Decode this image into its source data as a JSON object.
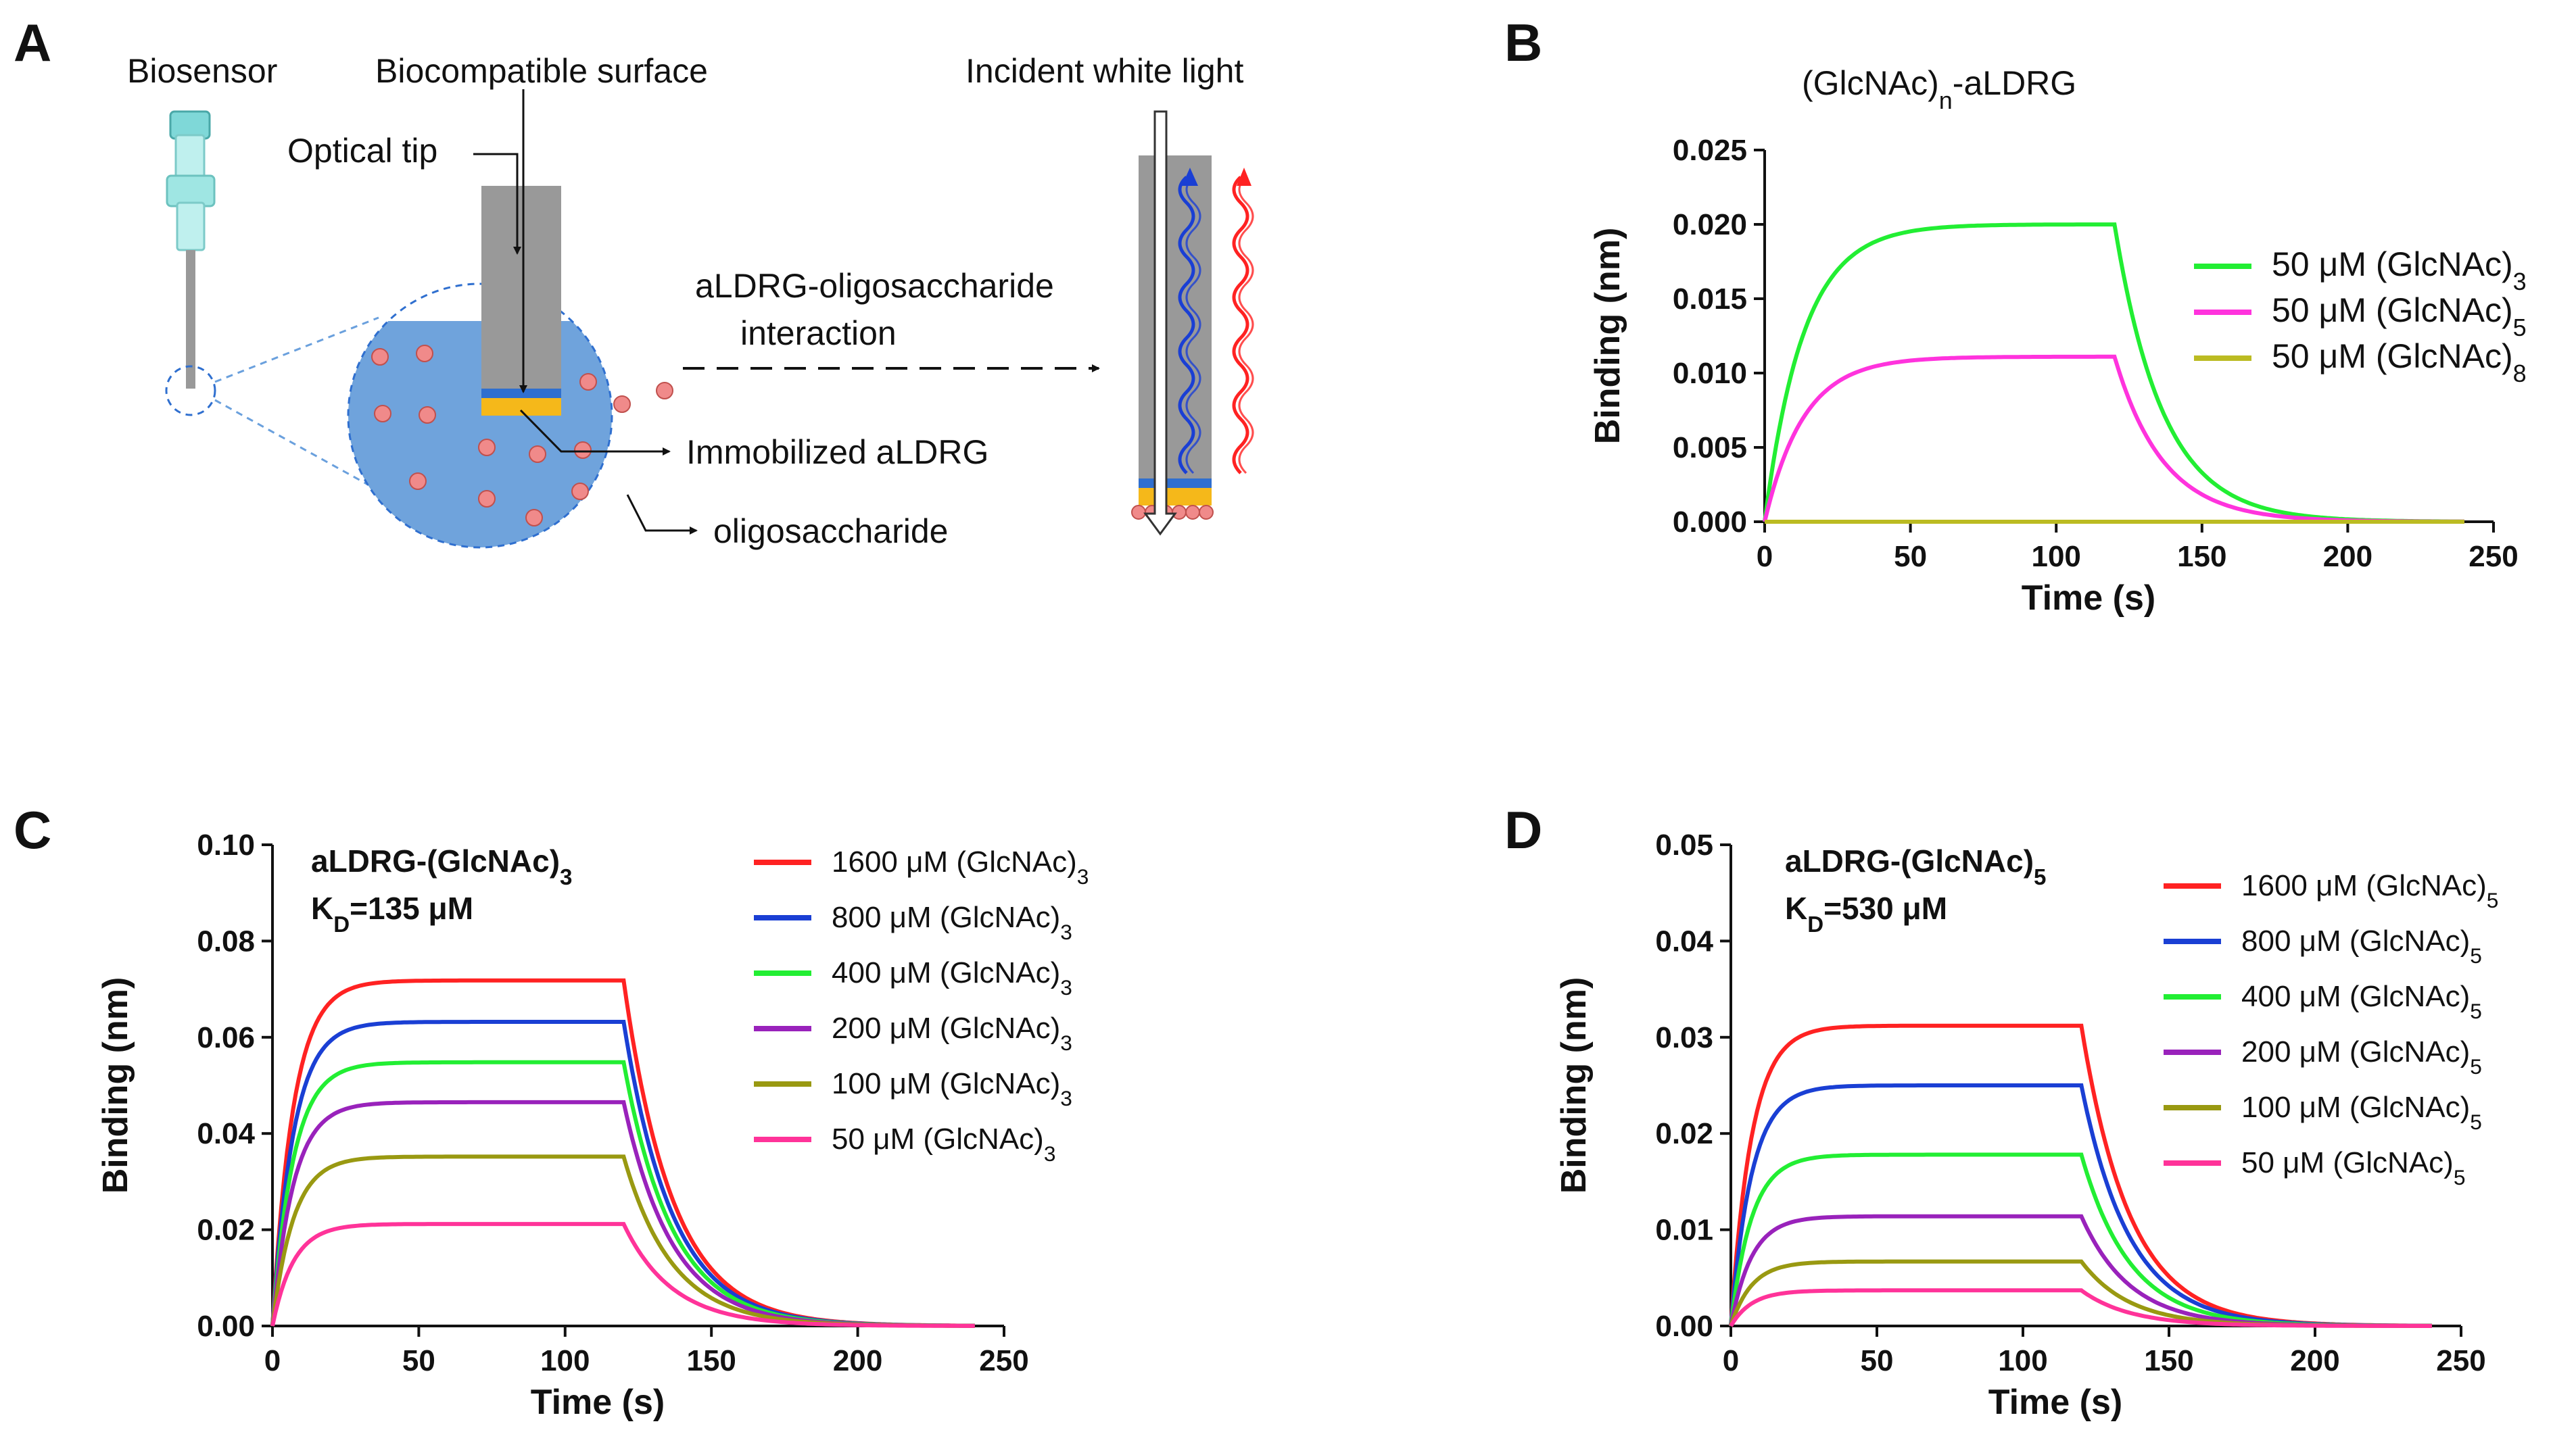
{
  "panel_labels": {
    "a": "A",
    "b": "B",
    "c": "C",
    "d": "D"
  },
  "diagram": {
    "biosensor": "Biosensor",
    "biocompatible_surface": "Biocompatible surface",
    "optical_tip": "Optical  tip",
    "incident_light": "Incident white light",
    "interaction_line1": "aLDRG-oligosaccharide",
    "interaction_line2": "interaction",
    "immobilized": "Immobilized aLDRG",
    "oligosaccharide": "oligosaccharide"
  },
  "colors": {
    "red": "#ff2222",
    "blue": "#1a3fd4",
    "green": "#22ee33",
    "purple": "#9922bb",
    "olive": "#999911",
    "pink": "#ff3399",
    "magenta": "#ff33dd",
    "yellowgreen": "#bbbb22",
    "solution": "#6fa3dc",
    "tip": "#999999",
    "layer_blue": "#2f6fcf",
    "layer_yellow": "#f5b81a",
    "bead": "#f08a8a"
  },
  "chart_data": [
    {
      "panel": "B",
      "type": "line",
      "title_main": "(GlcNAc)",
      "title_sub": "n",
      "title_rest": "-aLDRG",
      "xlabel": "Time (s)",
      "ylabel": "Binding (nm)",
      "xlim": [
        0,
        250
      ],
      "ylim": [
        0,
        0.025
      ],
      "xticks": [
        "0",
        "50",
        "100",
        "150",
        "200",
        "250"
      ],
      "yticks": [
        "0.000",
        "0.005",
        "0.010",
        "0.015",
        "0.020",
        "0.025"
      ],
      "assoc_end": 120,
      "end_time": 240,
      "series": [
        {
          "name_main": "50 μM (GlcNAc)",
          "name_sub": "3",
          "plateau": 0.02,
          "color": "#22ee33"
        },
        {
          "name_main": "50 μM (GlcNAc)",
          "name_sub": "5",
          "plateau": 0.0111,
          "color": "#ff33dd"
        },
        {
          "name_main": "50 μM (GlcNAc)",
          "name_sub": "8",
          "plateau": 0.0,
          "color": "#bbbb22"
        }
      ]
    },
    {
      "panel": "C",
      "type": "line",
      "title_main": "aLDRG-(GlcNAc)",
      "title_sub": "3",
      "kd_k": "K",
      "kd_sub": "D",
      "kd_val": "=135 μM",
      "xlabel": "Time (s)",
      "ylabel": "Binding (nm)",
      "xlim": [
        0,
        250
      ],
      "ylim": [
        0,
        0.1
      ],
      "xticks": [
        "0",
        "50",
        "100",
        "150",
        "200",
        "250"
      ],
      "yticks": [
        "0.00",
        "0.02",
        "0.04",
        "0.06",
        "0.08",
        "0.10"
      ],
      "assoc_end": 120,
      "end_time": 240,
      "series": [
        {
          "name_main": "1600 μM (GlcNAc)",
          "name_sub": "3",
          "plateau": 0.0718,
          "color": "#ff2222"
        },
        {
          "name_main": "800 μM (GlcNAc)",
          "name_sub": "3",
          "plateau": 0.0632,
          "color": "#1a3fd4"
        },
        {
          "name_main": "400 μM (GlcNAc)",
          "name_sub": "3",
          "plateau": 0.0548,
          "color": "#22ee33"
        },
        {
          "name_main": "200 μM (GlcNAc)",
          "name_sub": "3",
          "plateau": 0.0465,
          "color": "#9922bb"
        },
        {
          "name_main": "100 μM (GlcNAc)",
          "name_sub": "3",
          "plateau": 0.0352,
          "color": "#999911"
        },
        {
          "name_main": "50 μM (GlcNAc)",
          "name_sub": "3",
          "plateau": 0.0212,
          "color": "#ff3399"
        }
      ]
    },
    {
      "panel": "D",
      "type": "line",
      "title_main": "aLDRG-(GlcNAc)",
      "title_sub": "5",
      "kd_k": "K",
      "kd_sub": "D",
      "kd_val": "=530 μM",
      "xlabel": "Time (s)",
      "ylabel": "Binding (nm)",
      "xlim": [
        0,
        250
      ],
      "ylim": [
        0,
        0.05
      ],
      "xticks": [
        "0",
        "50",
        "100",
        "150",
        "200",
        "250"
      ],
      "yticks": [
        "0.00",
        "0.01",
        "0.02",
        "0.03",
        "0.04",
        "0.05"
      ],
      "assoc_end": 120,
      "end_time": 240,
      "series": [
        {
          "name_main": "1600 μM (GlcNAc)",
          "name_sub": "5",
          "plateau": 0.0312,
          "color": "#ff2222"
        },
        {
          "name_main": "800 μM (GlcNAc)",
          "name_sub": "5",
          "plateau": 0.025,
          "color": "#1a3fd4"
        },
        {
          "name_main": "400 μM (GlcNAc)",
          "name_sub": "5",
          "plateau": 0.0178,
          "color": "#22ee33"
        },
        {
          "name_main": "200 μM (GlcNAc)",
          "name_sub": "5",
          "plateau": 0.0114,
          "color": "#9922bb"
        },
        {
          "name_main": "100 μM (GlcNAc)",
          "name_sub": "5",
          "plateau": 0.0067,
          "color": "#999911"
        },
        {
          "name_main": "50 μM (GlcNAc)",
          "name_sub": "5",
          "plateau": 0.0037,
          "color": "#ff3399"
        }
      ]
    }
  ]
}
